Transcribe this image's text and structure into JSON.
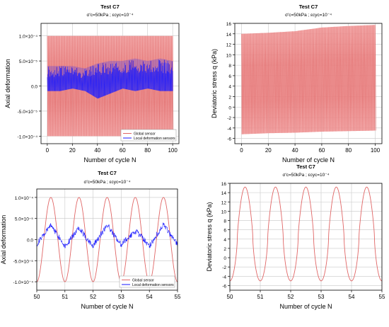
{
  "colors": {
    "global": "#e06666",
    "global_band": "#f4a3a3",
    "local": "#1a1aff",
    "grid": "#c8c8c8",
    "plot_bg": "#ffffff"
  },
  "chart_data": [
    {
      "id": "p1",
      "type": "line",
      "title": "Test C7",
      "subtitle": "σ'c=50kPa ; εcyc=10⁻⁴",
      "xlabel": "Number of cycle N",
      "ylabel": "Axial deformation",
      "xlim": [
        -5,
        105
      ],
      "ylim": [
        -0.000115,
        0.000125
      ],
      "xticks": [
        0,
        20,
        40,
        60,
        80,
        100
      ],
      "xtick_labels": [
        "0",
        "20",
        "40",
        "60",
        "80",
        "100"
      ],
      "yticks": [
        0.0001,
        5e-05,
        0,
        -5e-05,
        -0.0001
      ],
      "ytick_labels": [
        "1.0×10⁻⁴",
        "5.0×10⁻⁵",
        "0.0",
        "-5.0×10⁻⁵",
        "-1.0×10⁻⁴"
      ],
      "grid": true,
      "legend": {
        "position": "bottom-right",
        "entries": [
          "Global sensor",
          "Local deformation sensors"
        ]
      },
      "series": [
        {
          "name": "Global sensor",
          "role": "cyclic_band",
          "x": [
            0,
            20,
            40,
            60,
            80,
            100
          ],
          "max": [
            0.0001,
            0.0001,
            0.0001,
            0.0001,
            0.0001,
            0.0001
          ],
          "min": [
            -0.0001,
            -0.0001,
            -0.0001,
            -0.0001,
            -0.0001,
            -0.0001
          ]
        },
        {
          "name": "Local deformation sensors",
          "role": "cyclic_band",
          "x": [
            0,
            10,
            20,
            30,
            40,
            50,
            60,
            70,
            80,
            90,
            100
          ],
          "max": [
            4e-05,
            4e-05,
            4e-05,
            3.5e-05,
            4.5e-05,
            5e-05,
            5e-05,
            5.5e-05,
            5e-05,
            5.5e-05,
            5e-05
          ],
          "min": [
            -1e-05,
            -1e-05,
            -5e-06,
            -1e-05,
            -2.5e-05,
            -1.5e-05,
            -5e-06,
            -1e-05,
            -5e-06,
            -1e-05,
            -1e-05
          ]
        }
      ]
    },
    {
      "id": "p2",
      "type": "line",
      "title": "Test C7",
      "subtitle": "σ'c=50kPa ; εcyc=10⁻⁴",
      "xlabel": "Number of cycle N",
      "ylabel": "Deviatoric stress q (kPa)",
      "xlim": [
        -5,
        105
      ],
      "ylim": [
        -7,
        16
      ],
      "xticks": [
        0,
        20,
        40,
        60,
        80,
        100
      ],
      "xtick_labels": [
        "0",
        "20",
        "40",
        "60",
        "80",
        "100"
      ],
      "yticks": [
        -6,
        -4,
        -2,
        0,
        2,
        4,
        6,
        8,
        10,
        12,
        14,
        16
      ],
      "ytick_labels": [
        "-6",
        "-4",
        "-2",
        "0",
        "2",
        "4",
        "6",
        "8",
        "10",
        "12",
        "14",
        "16"
      ],
      "grid": true,
      "series": [
        {
          "name": "",
          "role": "cyclic_band",
          "x": [
            0,
            20,
            40,
            60,
            80,
            100
          ],
          "max": [
            14,
            14.2,
            14.5,
            15.2,
            15.5,
            15.7
          ],
          "min": [
            -5.2,
            -5,
            -4.9,
            -4.7,
            -4.6,
            -4.5
          ]
        }
      ]
    },
    {
      "id": "p3",
      "type": "line",
      "title": "Test C7",
      "subtitle": "σ'c=50kPa ; εcyc=10⁻⁴",
      "xlabel": "Number of cycle N",
      "ylabel": "Axial deformation",
      "xlim": [
        50,
        55
      ],
      "ylim": [
        -0.00012,
        0.00012
      ],
      "xticks": [
        50,
        51,
        52,
        53,
        54,
        55
      ],
      "xtick_labels": [
        "50",
        "51",
        "52",
        "53",
        "54",
        "55"
      ],
      "yticks": [
        0.0001,
        5e-05,
        0,
        -5e-05,
        -0.0001
      ],
      "ytick_labels": [
        "1.0×10⁻⁴",
        "5.0×10⁻⁵",
        "0.0",
        "-5.0×10⁻⁵",
        "-1.0×10⁻⁴"
      ],
      "grid": true,
      "legend": {
        "position": "bottom-right",
        "entries": [
          "Global sensor",
          "Local deformation sensors"
        ]
      },
      "series": [
        {
          "name": "Global sensor",
          "role": "sinusoid",
          "amplitude": 0.0001,
          "offset": 0,
          "period": 1,
          "peak_x": 50.5
        },
        {
          "name": "Local deformation sensors",
          "role": "noisy_sinusoid",
          "x": [
            50,
            50.25,
            50.5,
            50.75,
            51,
            51.25,
            51.5,
            51.75,
            52,
            52.25,
            52.5,
            52.75,
            53,
            53.25,
            53.5,
            53.75,
            54,
            54.25,
            54.5,
            54.75,
            55
          ],
          "y": [
            -1e-05,
            1e-05,
            3.5e-05,
            1e-05,
            -1.5e-05,
            5e-06,
            3e-05,
            5e-06,
            -1.5e-05,
            1e-05,
            3.5e-05,
            1e-05,
            -1.2e-05,
            5e-06,
            2e-05,
            5e-06,
            -1.5e-05,
            1e-05,
            3.5e-05,
            1e-05,
            -1e-05
          ]
        }
      ]
    },
    {
      "id": "p4",
      "type": "line",
      "title": "Test C7",
      "subtitle": "σ'c=50kPa ; εcyc=10⁻⁴",
      "xlabel": "Number of cycle N",
      "ylabel": "Deviatoric stress q (kPa)",
      "xlim": [
        50,
        55
      ],
      "ylim": [
        -7,
        16
      ],
      "xticks": [
        50,
        51,
        52,
        53,
        54,
        55
      ],
      "xtick_labels": [
        "50",
        "51",
        "52",
        "53",
        "54",
        "55"
      ],
      "yticks": [
        -6,
        -4,
        -2,
        0,
        2,
        4,
        6,
        8,
        10,
        12,
        14,
        16
      ],
      "ytick_labels": [
        "-6",
        "-4",
        "-2",
        "0",
        "2",
        "4",
        "6",
        "8",
        "10",
        "12",
        "14",
        "16"
      ],
      "grid": true,
      "series": [
        {
          "name": "",
          "role": "sinusoid",
          "max": 15.2,
          "min": -5,
          "period": 1,
          "peak_x": 50.5
        }
      ]
    }
  ]
}
